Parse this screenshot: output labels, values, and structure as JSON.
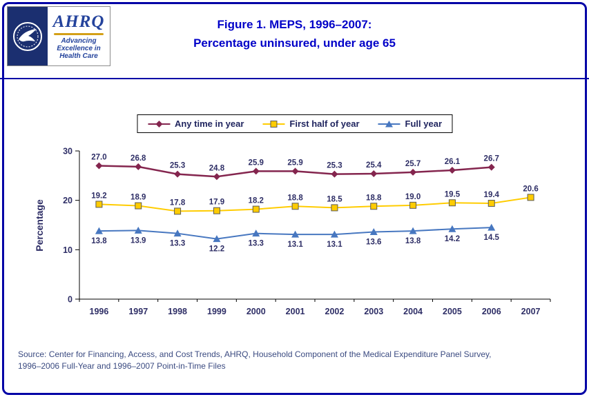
{
  "page": {
    "title_line1": "Figure 1. MEPS, 1996–2007:",
    "title_line2": "Percentage uninsured, under age 65",
    "source_line1": "Source: Center for Financing, Access, and Cost Trends, AHRQ, Household Component of the Medical Expenditure Panel Survey,",
    "source_line2": "1996–2006 Full-Year and 1996–2007 Point-in-Time Files"
  },
  "logo": {
    "org": "AHRQ",
    "tagline_line1": "Advancing",
    "tagline_line2": "Excellence in",
    "tagline_line3": "Health Care"
  },
  "accent_colors": {
    "title_blue": "#0000C8",
    "border_blue": "#0000A6",
    "label_navy": "#2E2E66",
    "source_text": "#3A4A80",
    "logo_navy": "#1B2F70",
    "logo_gold": "#D4A017",
    "logo_blue": "#24439C"
  },
  "chart_data": {
    "type": "line",
    "title": "Figure 1. MEPS, 1996–2007: Percentage uninsured, under age 65",
    "categories": [
      1996,
      1997,
      1998,
      1999,
      2000,
      2001,
      2002,
      2003,
      2004,
      2005,
      2006,
      2007
    ],
    "series": [
      {
        "name": "Any time in year",
        "marker": "diamond",
        "color": "#84254E",
        "line_width": 2.5,
        "value_label_position": "above",
        "values": [
          27.0,
          26.8,
          25.3,
          24.8,
          25.9,
          25.9,
          25.3,
          25.4,
          25.7,
          26.1,
          26.7,
          null
        ]
      },
      {
        "name": "First half of year",
        "marker": "square",
        "color": "#FFCC00",
        "marker_stroke": "#595959",
        "line_width": 2,
        "value_label_position": "above",
        "values": [
          19.2,
          18.9,
          17.8,
          17.9,
          18.2,
          18.8,
          18.5,
          18.8,
          19.0,
          19.5,
          19.4,
          20.6
        ]
      },
      {
        "name": "Full year",
        "marker": "triangle",
        "color": "#4777C0",
        "line_width": 2,
        "value_label_position": "below",
        "values": [
          13.8,
          13.9,
          13.3,
          12.2,
          13.3,
          13.1,
          13.1,
          13.6,
          13.8,
          14.2,
          14.5,
          null
        ]
      }
    ],
    "xlabel": "",
    "ylabel": "Percentage",
    "ylim": [
      0,
      30
    ],
    "yticks": [
      0,
      10,
      20,
      30
    ],
    "grid": false,
    "legend_position": "top"
  }
}
